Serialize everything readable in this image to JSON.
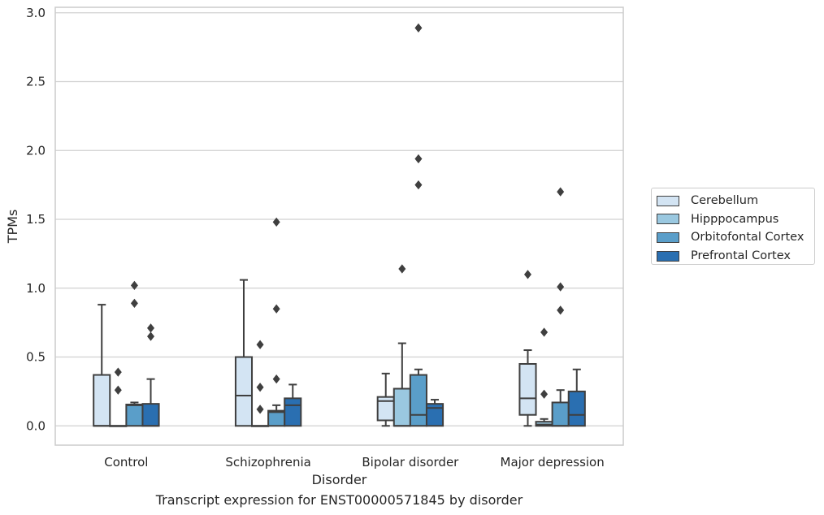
{
  "chart_data": {
    "type": "box",
    "xlabel": "Disorder",
    "ylabel": "TPMs",
    "caption": "Transcript expression for ENST00000571845 by disorder",
    "ylim": [
      -0.14,
      3.04
    ],
    "yticks": [
      "0.0",
      "0.5",
      "1.0",
      "1.5",
      "2.0",
      "2.5",
      "3.0"
    ],
    "grid": "horizontal",
    "legend_position": "right",
    "categories": [
      "Control",
      "Schizophrenia",
      "Bipolar disorder",
      "Major depression"
    ],
    "series": [
      {
        "name": "Cerebellum",
        "color": "#d3e4f3",
        "boxes": [
          {
            "q1": 0.0,
            "median": 0.0,
            "q3": 0.37,
            "whisker_low": 0.0,
            "whisker_high": 0.88,
            "outliers": []
          },
          {
            "q1": 0.0,
            "median": 0.22,
            "q3": 0.5,
            "whisker_low": 0.0,
            "whisker_high": 1.06,
            "outliers": []
          },
          {
            "q1": 0.04,
            "median": 0.18,
            "q3": 0.21,
            "whisker_low": 0.0,
            "whisker_high": 0.38,
            "outliers": []
          },
          {
            "q1": 0.08,
            "median": 0.2,
            "q3": 0.45,
            "whisker_low": 0.0,
            "whisker_high": 0.55,
            "outliers": [
              1.1
            ]
          }
        ]
      },
      {
        "name": "Hipppocampus",
        "color": "#9ac8e0",
        "boxes": [
          {
            "q1": 0.0,
            "median": 0.0,
            "q3": 0.0,
            "whisker_low": 0.0,
            "whisker_high": 0.0,
            "outliers": [
              0.26,
              0.39
            ]
          },
          {
            "q1": 0.0,
            "median": 0.0,
            "q3": 0.0,
            "whisker_low": 0.0,
            "whisker_high": 0.0,
            "outliers": [
              0.12,
              0.28,
              0.59
            ]
          },
          {
            "q1": 0.0,
            "median": 0.0,
            "q3": 0.27,
            "whisker_low": 0.0,
            "whisker_high": 0.6,
            "outliers": [
              1.14
            ]
          },
          {
            "q1": 0.0,
            "median": 0.01,
            "q3": 0.03,
            "whisker_low": 0.0,
            "whisker_high": 0.05,
            "outliers": [
              0.23,
              0.68
            ]
          }
        ]
      },
      {
        "name": "Orbitofontal Cortex",
        "color": "#5a9ec9",
        "boxes": [
          {
            "q1": 0.0,
            "median": 0.15,
            "q3": 0.155,
            "whisker_low": 0.0,
            "whisker_high": 0.17,
            "outliers": [
              0.89,
              1.02
            ]
          },
          {
            "q1": 0.0,
            "median": 0.1,
            "q3": 0.11,
            "whisker_low": 0.0,
            "whisker_high": 0.15,
            "outliers": [
              0.34,
              0.85,
              1.48
            ]
          },
          {
            "q1": 0.0,
            "median": 0.08,
            "q3": 0.37,
            "whisker_low": 0.0,
            "whisker_high": 0.41,
            "outliers": [
              1.75,
              1.94,
              2.89
            ]
          },
          {
            "q1": 0.0,
            "median": 0.0,
            "q3": 0.17,
            "whisker_low": 0.0,
            "whisker_high": 0.26,
            "outliers": [
              0.84,
              1.01,
              1.7
            ]
          }
        ]
      },
      {
        "name": "Prefrontal Cortex",
        "color": "#2a6fb1",
        "boxes": [
          {
            "q1": 0.0,
            "median": 0.0,
            "q3": 0.16,
            "whisker_low": 0.0,
            "whisker_high": 0.34,
            "outliers": [
              0.65,
              0.71
            ]
          },
          {
            "q1": 0.0,
            "median": 0.15,
            "q3": 0.2,
            "whisker_low": 0.0,
            "whisker_high": 0.3,
            "outliers": []
          },
          {
            "q1": 0.0,
            "median": 0.13,
            "q3": 0.16,
            "whisker_low": 0.0,
            "whisker_high": 0.19,
            "outliers": []
          },
          {
            "q1": 0.0,
            "median": 0.08,
            "q3": 0.25,
            "whisker_low": 0.0,
            "whisker_high": 0.41,
            "outliers": []
          }
        ]
      }
    ]
  }
}
